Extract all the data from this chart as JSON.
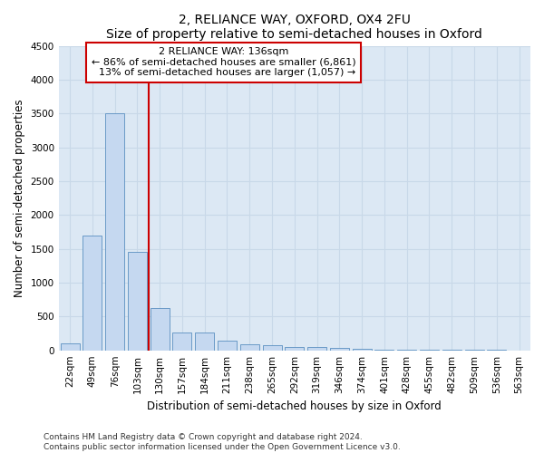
{
  "title": "2, RELIANCE WAY, OXFORD, OX4 2FU",
  "subtitle": "Size of property relative to semi-detached houses in Oxford",
  "xlabel": "Distribution of semi-detached houses by size in Oxford",
  "ylabel": "Number of semi-detached properties",
  "categories": [
    "22sqm",
    "49sqm",
    "76sqm",
    "103sqm",
    "130sqm",
    "157sqm",
    "184sqm",
    "211sqm",
    "238sqm",
    "265sqm",
    "292sqm",
    "319sqm",
    "346sqm",
    "374sqm",
    "401sqm",
    "428sqm",
    "455sqm",
    "482sqm",
    "509sqm",
    "536sqm",
    "563sqm"
  ],
  "values": [
    100,
    1700,
    3500,
    1450,
    620,
    265,
    265,
    145,
    90,
    80,
    55,
    45,
    30,
    20,
    15,
    10,
    8,
    5,
    4,
    3,
    2
  ],
  "bar_color": "#c5d8f0",
  "bar_edge_color": "#5a8fc0",
  "vline_index": 3,
  "property_name": "2 RELIANCE WAY: 136sqm",
  "pct_smaller": 86,
  "count_smaller": 6861,
  "pct_larger": 13,
  "count_larger": 1057,
  "annotation_box_color": "#ffffff",
  "annotation_box_edge_color": "#cc0000",
  "vline_color": "#cc0000",
  "ylim": [
    0,
    4500
  ],
  "yticks": [
    0,
    500,
    1000,
    1500,
    2000,
    2500,
    3000,
    3500,
    4000,
    4500
  ],
  "grid_color": "#c8d8e8",
  "bg_color": "#dce8f4",
  "footer1": "Contains HM Land Registry data © Crown copyright and database right 2024.",
  "footer2": "Contains public sector information licensed under the Open Government Licence v3.0.",
  "title_fontsize": 10,
  "axis_label_fontsize": 8.5,
  "tick_fontsize": 7.5,
  "annotation_fontsize": 8,
  "footer_fontsize": 6.5,
  "bar_width": 0.85
}
